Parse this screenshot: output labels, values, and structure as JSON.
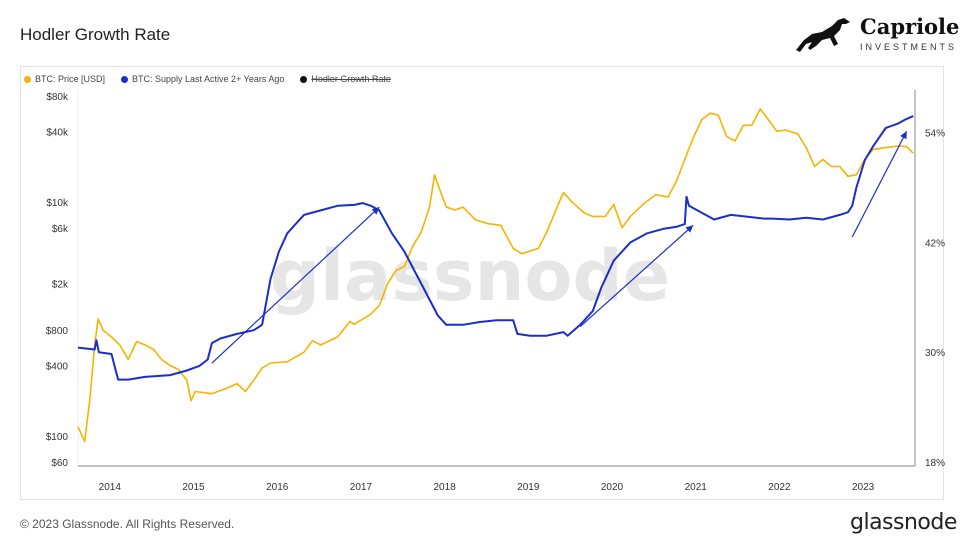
{
  "page": {
    "title": "Hodler Growth Rate",
    "copyright": "© 2023 Glassnode. All Rights Reserved.",
    "footer_brand": "glassnode",
    "watermark": "glassnode"
  },
  "brand": {
    "name": "Capriole",
    "subtitle": "INVESTMENTS",
    "icon": "horse-icon"
  },
  "legend": [
    {
      "label": "BTC: Price [USD]",
      "color": "#f4b400",
      "active": true
    },
    {
      "label": "BTC: Supply Last Active 2+ Years Ago",
      "color": "#1a2fc9",
      "active": true
    },
    {
      "label": "Hodler Growth Rate",
      "color": "#111111",
      "active": false
    }
  ],
  "chart_data": {
    "type": "line",
    "title": "Hodler Growth Rate",
    "x_ticks": [
      "2014",
      "2015",
      "2016",
      "2017",
      "2018",
      "2019",
      "2020",
      "2021",
      "2022",
      "2023"
    ],
    "y_left": {
      "scale": "log",
      "ticks": [
        "$80k",
        "$40k",
        "$10k",
        "$6k",
        "$2k",
        "$800",
        "$400",
        "$100",
        "$60"
      ],
      "range": [
        60,
        80000
      ]
    },
    "y_right": {
      "scale": "linear",
      "ticks": [
        "54%",
        "42%",
        "30%",
        "18%"
      ],
      "range": [
        18,
        58
      ]
    },
    "grid": false,
    "legend_position": "top-left",
    "series": [
      {
        "name": "BTC: Price [USD]",
        "axis": "left",
        "color": "#f4b400",
        "points": [
          [
            2013.7,
            120
          ],
          [
            2013.78,
            90
          ],
          [
            2013.84,
            200
          ],
          [
            2013.9,
            600
          ],
          [
            2013.94,
            1000
          ],
          [
            2014.0,
            800
          ],
          [
            2014.1,
            700
          ],
          [
            2014.2,
            600
          ],
          [
            2014.3,
            450
          ],
          [
            2014.4,
            640
          ],
          [
            2014.5,
            600
          ],
          [
            2014.6,
            550
          ],
          [
            2014.7,
            450
          ],
          [
            2014.8,
            400
          ],
          [
            2014.9,
            370
          ],
          [
            2015.0,
            300
          ],
          [
            2015.05,
            200
          ],
          [
            2015.1,
            240
          ],
          [
            2015.3,
            230
          ],
          [
            2015.5,
            260
          ],
          [
            2015.6,
            280
          ],
          [
            2015.7,
            240
          ],
          [
            2015.8,
            300
          ],
          [
            2015.9,
            380
          ],
          [
            2016.0,
            420
          ],
          [
            2016.2,
            430
          ],
          [
            2016.4,
            520
          ],
          [
            2016.5,
            650
          ],
          [
            2016.6,
            600
          ],
          [
            2016.8,
            700
          ],
          [
            2016.95,
            950
          ],
          [
            2017.0,
            900
          ],
          [
            2017.2,
            1100
          ],
          [
            2017.3,
            1300
          ],
          [
            2017.4,
            2000
          ],
          [
            2017.5,
            2600
          ],
          [
            2017.6,
            2800
          ],
          [
            2017.7,
            4200
          ],
          [
            2017.8,
            5500
          ],
          [
            2017.9,
            9000
          ],
          [
            2017.96,
            17000
          ],
          [
            2018.0,
            14000
          ],
          [
            2018.1,
            9000
          ],
          [
            2018.2,
            8500
          ],
          [
            2018.3,
            9000
          ],
          [
            2018.45,
            7000
          ],
          [
            2018.6,
            6500
          ],
          [
            2018.75,
            6300
          ],
          [
            2018.9,
            4000
          ],
          [
            2019.0,
            3600
          ],
          [
            2019.2,
            4000
          ],
          [
            2019.3,
            5500
          ],
          [
            2019.45,
            10000
          ],
          [
            2019.5,
            12000
          ],
          [
            2019.6,
            10000
          ],
          [
            2019.75,
            8000
          ],
          [
            2019.85,
            7500
          ],
          [
            2020.0,
            7500
          ],
          [
            2020.1,
            9500
          ],
          [
            2020.2,
            6000
          ],
          [
            2020.3,
            7500
          ],
          [
            2020.45,
            9500
          ],
          [
            2020.6,
            11500
          ],
          [
            2020.75,
            11000
          ],
          [
            2020.85,
            15000
          ],
          [
            2020.95,
            23000
          ],
          [
            2021.05,
            35000
          ],
          [
            2021.15,
            50000
          ],
          [
            2021.25,
            57000
          ],
          [
            2021.35,
            55000
          ],
          [
            2021.45,
            36000
          ],
          [
            2021.55,
            33000
          ],
          [
            2021.65,
            45000
          ],
          [
            2021.75,
            45000
          ],
          [
            2021.85,
            62000
          ],
          [
            2021.95,
            50000
          ],
          [
            2022.05,
            40000
          ],
          [
            2022.15,
            41000
          ],
          [
            2022.3,
            38000
          ],
          [
            2022.4,
            29000
          ],
          [
            2022.5,
            20000
          ],
          [
            2022.6,
            23000
          ],
          [
            2022.7,
            20000
          ],
          [
            2022.8,
            20000
          ],
          [
            2022.9,
            16500
          ],
          [
            2023.0,
            17000
          ],
          [
            2023.1,
            23000
          ],
          [
            2023.2,
            28000
          ],
          [
            2023.35,
            29000
          ],
          [
            2023.5,
            30000
          ],
          [
            2023.6,
            29500
          ],
          [
            2023.68,
            26000
          ]
        ]
      },
      {
        "name": "BTC: Supply Last Active 2+ Years Ago",
        "axis": "right",
        "color": "#1a2fc9",
        "points": [
          [
            2013.7,
            30.5
          ],
          [
            2013.9,
            30.3
          ],
          [
            2013.92,
            31.3
          ],
          [
            2013.95,
            30.0
          ],
          [
            2014.1,
            29.8
          ],
          [
            2014.15,
            28.0
          ],
          [
            2014.18,
            27.0
          ],
          [
            2014.3,
            27.0
          ],
          [
            2014.5,
            27.3
          ],
          [
            2014.8,
            27.5
          ],
          [
            2015.0,
            28.0
          ],
          [
            2015.15,
            28.5
          ],
          [
            2015.25,
            29.2
          ],
          [
            2015.3,
            31.0
          ],
          [
            2015.4,
            31.5
          ],
          [
            2015.6,
            32.0
          ],
          [
            2015.8,
            32.4
          ],
          [
            2015.9,
            33.0
          ],
          [
            2016.0,
            38.0
          ],
          [
            2016.1,
            41.0
          ],
          [
            2016.2,
            43.0
          ],
          [
            2016.3,
            44.0
          ],
          [
            2016.4,
            45.0
          ],
          [
            2016.6,
            45.5
          ],
          [
            2016.8,
            46.0
          ],
          [
            2017.0,
            46.1
          ],
          [
            2017.1,
            46.3
          ],
          [
            2017.2,
            46.0
          ],
          [
            2017.3,
            45.5
          ],
          [
            2017.45,
            43.0
          ],
          [
            2017.6,
            41.0
          ],
          [
            2017.8,
            37.5
          ],
          [
            2018.0,
            34.0
          ],
          [
            2018.1,
            33.0
          ],
          [
            2018.3,
            33.0
          ],
          [
            2018.5,
            33.3
          ],
          [
            2018.7,
            33.5
          ],
          [
            2018.9,
            33.5
          ],
          [
            2018.95,
            32.0
          ],
          [
            2019.1,
            31.8
          ],
          [
            2019.3,
            31.8
          ],
          [
            2019.5,
            32.2
          ],
          [
            2019.55,
            31.8
          ],
          [
            2019.7,
            33.0
          ],
          [
            2019.85,
            34.5
          ],
          [
            2019.95,
            37.0
          ],
          [
            2020.1,
            40.0
          ],
          [
            2020.3,
            42.0
          ],
          [
            2020.5,
            43.0
          ],
          [
            2020.7,
            43.5
          ],
          [
            2020.85,
            43.7
          ],
          [
            2020.95,
            44.0
          ],
          [
            2020.97,
            47.0
          ],
          [
            2021.0,
            46.0
          ],
          [
            2021.1,
            45.5
          ],
          [
            2021.3,
            44.5
          ],
          [
            2021.5,
            45.0
          ],
          [
            2021.7,
            44.8
          ],
          [
            2021.9,
            44.6
          ],
          [
            2022.0,
            44.6
          ],
          [
            2022.2,
            44.5
          ],
          [
            2022.4,
            44.7
          ],
          [
            2022.6,
            44.5
          ],
          [
            2022.8,
            45.0
          ],
          [
            2022.9,
            45.3
          ],
          [
            2022.95,
            46.0
          ],
          [
            2023.0,
            48.0
          ],
          [
            2023.1,
            51.0
          ],
          [
            2023.2,
            52.5
          ],
          [
            2023.35,
            54.5
          ],
          [
            2023.5,
            55.0
          ],
          [
            2023.6,
            55.5
          ],
          [
            2023.68,
            55.8
          ]
        ]
      }
    ],
    "annotations": [
      {
        "type": "arrow",
        "from": [
          2015.3,
          420
        ],
        "to": [
          2017.3,
          9000
        ],
        "axis": "left",
        "color": "#1a2fc9"
      },
      {
        "type": "arrow",
        "from": [
          2019.7,
          860
        ],
        "to": [
          2021.05,
          6300
        ],
        "axis": "left",
        "color": "#1a2fc9"
      },
      {
        "type": "arrow",
        "from": [
          2022.95,
          5000
        ],
        "to": [
          2023.6,
          40000
        ],
        "axis": "left",
        "color": "#1a2fc9"
      }
    ]
  }
}
